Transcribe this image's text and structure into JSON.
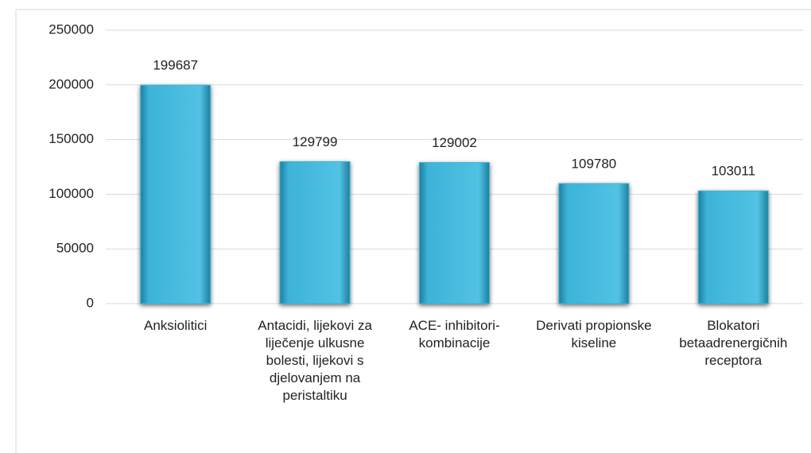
{
  "chart_data": {
    "type": "bar",
    "categories": [
      "Anksiolitici",
      "Antacidi, lijekovi za liječenje ulkusne bolesti, lijekovi s djelovanjem na peristaltiku",
      "ACE- inhibitori-kombinacije",
      "Derivati propionske kiseline",
      "Blokatori betaadrenergičnih receptora"
    ],
    "values": [
      199687,
      129799,
      129002,
      109780,
      103011
    ],
    "color": "#3cb4d8",
    "ylim": [
      0,
      250000
    ],
    "yticks": [
      0,
      50000,
      100000,
      150000,
      200000,
      250000
    ],
    "grid": true
  }
}
